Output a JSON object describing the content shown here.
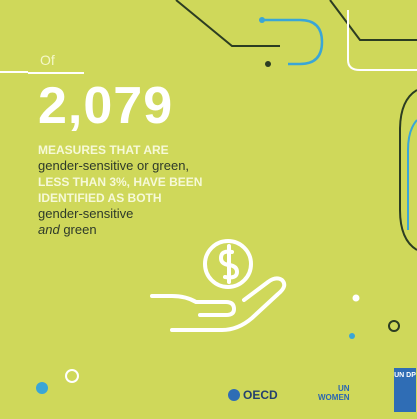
{
  "infographic": {
    "prefix": "Of",
    "big_number": "2,079",
    "line1": "MEASURES THAT ARE",
    "line2": "gender-sensitive or green,",
    "line3": "LESS THAN 3%, HAVE BEEN",
    "line4": "IDENTIFIED AS BOTH",
    "line5": "gender-sensitive",
    "line6_em": "and",
    "line6_rest": " green"
  },
  "logos": {
    "oecd": "OECD",
    "unwomen_top": "UN",
    "unwomen_bottom": "WOMEN",
    "undp": "UN DP"
  },
  "colors": {
    "background": "#cfd85a",
    "text": "#ffffff",
    "dark_line": "#2c3d22",
    "accent_blue": "#3aa6d6"
  }
}
